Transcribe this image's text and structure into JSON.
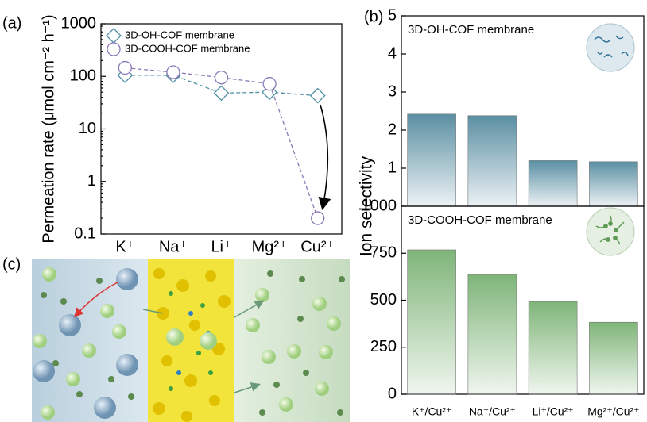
{
  "chart_data": [
    {
      "type": "line",
      "label": "(a)",
      "y_label": "Permeation rate (μmol cm⁻² h⁻¹)",
      "categories": [
        "K⁺",
        "Na⁺",
        "Li⁺",
        "Mg²⁺",
        "Cu²⁺"
      ],
      "log_scale": true,
      "ylim": [
        0.1,
        1000
      ],
      "yticks": [
        0.1,
        1,
        10,
        100,
        1000
      ],
      "legend": "upper left",
      "series": [
        {
          "name": "3D-OH-COF membrane",
          "color": "#4f8fa5",
          "marker": "diamond",
          "values": [
            105,
            105,
            48,
            50,
            43
          ]
        },
        {
          "name": "3D-COOH-COF membrane",
          "color": "#8a78b5",
          "marker": "circle",
          "values": [
            145,
            120,
            95,
            72,
            0.2
          ]
        }
      ]
    },
    {
      "type": "bar",
      "label": "(b)",
      "annotation": "3D-OH-COF membrane",
      "color": "#5b8fa3",
      "values": [
        2.42,
        2.38,
        1.2,
        1.17
      ],
      "ylim": [
        0,
        5
      ],
      "yticks": [
        1,
        2,
        3,
        4,
        5
      ]
    },
    {
      "type": "bar",
      "annotation": "3D-COOH-COF membrane",
      "color": "#7fb579",
      "y_label": "Ion selectivity",
      "categories": [
        "K⁺/Cu²⁺",
        "Na⁺/Cu²⁺",
        "Li⁺/Cu²⁺",
        "Mg²⁺/Cu²⁺"
      ],
      "values": [
        768,
        637,
        493,
        383
      ],
      "ylim": [
        0,
        1000
      ],
      "yticks": [
        0,
        250,
        500,
        750,
        1000
      ]
    }
  ],
  "figure_c": {
    "label": "(c)"
  }
}
